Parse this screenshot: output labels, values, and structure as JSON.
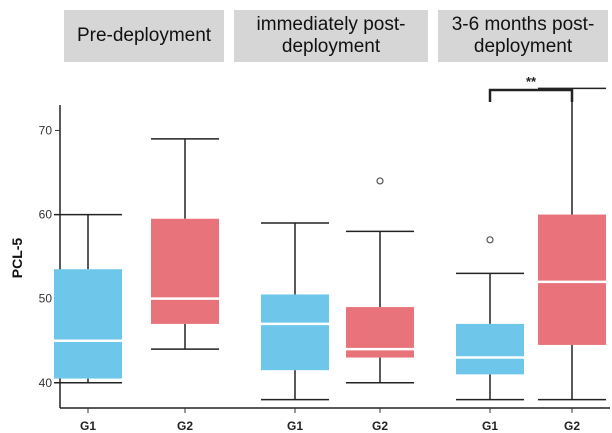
{
  "chart_data": {
    "type": "box",
    "ylabel": "PCL-5",
    "ylim": [
      37,
      76
    ],
    "yticks": [
      40,
      50,
      60,
      70
    ],
    "colors": {
      "G1": "#6ec6ea",
      "G2": "#e8737a",
      "header_bg": "#d6d6d6"
    },
    "panels": [
      {
        "title": "Pre-deployment",
        "boxes": [
          {
            "group": "G1",
            "whisker_low": 40,
            "q1": 40.5,
            "median": 45,
            "q3": 53.5,
            "whisker_high": 60,
            "outliers": []
          },
          {
            "group": "G2",
            "whisker_low": 44,
            "q1": 47,
            "median": 50,
            "q3": 59.5,
            "whisker_high": 69,
            "outliers": []
          }
        ]
      },
      {
        "title": "immediately post-deployment",
        "boxes": [
          {
            "group": "G1",
            "whisker_low": 38,
            "q1": 41.5,
            "median": 47,
            "q3": 50.5,
            "whisker_high": 59,
            "outliers": []
          },
          {
            "group": "G2",
            "whisker_low": 40,
            "q1": 43,
            "median": 44,
            "q3": 49,
            "whisker_high": 58,
            "outliers": [
              64
            ]
          }
        ]
      },
      {
        "title": "3-6 months post-deployment",
        "boxes": [
          {
            "group": "G1",
            "whisker_low": 38,
            "q1": 41,
            "median": 43,
            "q3": 47,
            "whisker_high": 53,
            "outliers": [
              57
            ]
          },
          {
            "group": "G2",
            "whisker_low": 38,
            "q1": 44.5,
            "median": 52,
            "q3": 60,
            "whisker_high": 75,
            "outliers": []
          }
        ],
        "significance": "**"
      }
    ]
  }
}
